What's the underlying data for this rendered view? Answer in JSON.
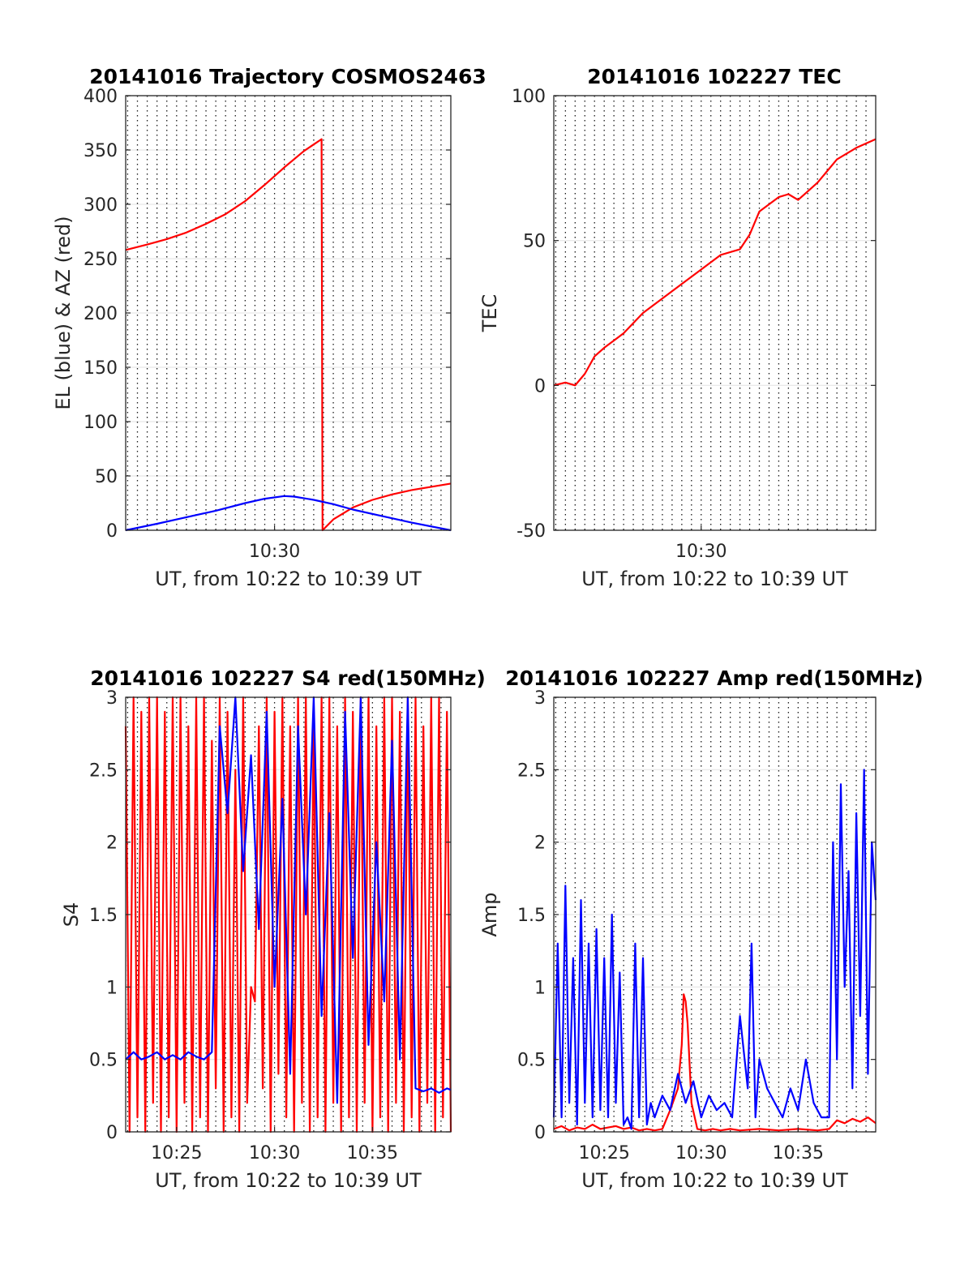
{
  "chart_data": [
    {
      "type": "line",
      "title": "20141016 Trajectory COSMOS2463",
      "xlabel": "UT, from 10:22 to 10:39 UT",
      "ylabel": "EL (blue) & AZ (red)",
      "x_unit": "minutes after 10:00 UT",
      "xlim": [
        22.4,
        39.0
      ],
      "ylim": [
        0,
        400
      ],
      "yticks": [
        0,
        50,
        100,
        150,
        200,
        250,
        300,
        350,
        400
      ],
      "xticks": [
        30
      ],
      "xticklabels": [
        "10:30"
      ],
      "grid": "x dotted every 0.5 min, y solid",
      "series": [
        {
          "color": "#ff0000",
          "x": [
            22.4,
            23.5,
            24.5,
            25.5,
            26.5,
            27.5,
            28.5,
            29.5,
            30.5,
            31.5,
            32.4,
            32.45,
            33.0,
            34.0,
            35.0,
            36.0,
            37.0,
            38.0,
            39.0
          ],
          "values": [
            258,
            263,
            268,
            274,
            282,
            291,
            303,
            318,
            334,
            349,
            360,
            0,
            10,
            21,
            28,
            33,
            37,
            40,
            43
          ]
        },
        {
          "color": "#0000ff",
          "x": [
            22.4,
            24.0,
            25.5,
            27.0,
            28.5,
            29.5,
            30.5,
            31.0,
            32.0,
            33.0,
            34.0,
            35.5,
            37.0,
            39.0
          ],
          "values": [
            0,
            6,
            12,
            18,
            25,
            29,
            31.5,
            31,
            28,
            24,
            19,
            13,
            7,
            0
          ]
        }
      ]
    },
    {
      "type": "line",
      "title": "20141016 102227 TEC",
      "xlabel": "UT, from 10:22 to 10:39 UT",
      "ylabel": "TEC",
      "x_unit": "minutes after 10:00 UT",
      "xlim": [
        22.4,
        39.0
      ],
      "ylim": [
        -50,
        100
      ],
      "yticks": [
        -50,
        0,
        50,
        100
      ],
      "xticks": [
        30
      ],
      "xticklabels": [
        "10:30"
      ],
      "grid": "x dotted every 0.5 min, y solid",
      "series": [
        {
          "color": "#ff0000",
          "x": [
            22.4,
            23.0,
            23.5,
            24.0,
            24.5,
            25.0,
            26.0,
            27.0,
            28.0,
            29.0,
            30.0,
            31.0,
            32.0,
            32.5,
            33.0,
            34.0,
            34.5,
            35.0,
            35.5,
            36.0,
            37.0,
            38.0,
            39.0
          ],
          "values": [
            0,
            1,
            0,
            4,
            10,
            13,
            18,
            25,
            30,
            35,
            40,
            45,
            47,
            52,
            60,
            65,
            66,
            64,
            67,
            70,
            78,
            82,
            85
          ]
        }
      ]
    },
    {
      "type": "line",
      "title": "20141016 102227 S4 red(150MHz)",
      "xlabel": "UT, from 10:22 to 10:39 UT",
      "ylabel": "S4",
      "x_unit": "minutes after 10:00 UT",
      "xlim": [
        22.4,
        39.0
      ],
      "ylim": [
        0,
        3
      ],
      "yticks": [
        0,
        0.5,
        1,
        1.5,
        2,
        2.5,
        3
      ],
      "xticks": [
        25,
        30,
        35
      ],
      "xticklabels": [
        "10:25",
        "10:30",
        "10:35"
      ],
      "grid": "x dotted every 0.5 min, y solid",
      "series": [
        {
          "color": "#ff0000",
          "x": [
            22.4,
            22.6,
            22.8,
            23.0,
            23.2,
            23.4,
            23.6,
            23.8,
            24.0,
            24.2,
            24.4,
            24.6,
            24.8,
            25.0,
            25.2,
            25.4,
            25.6,
            25.8,
            26.0,
            26.2,
            26.4,
            26.6,
            26.8,
            27.0,
            27.2,
            27.4,
            27.6,
            27.8,
            28.0,
            28.2,
            28.4,
            28.6,
            28.8,
            29.0,
            29.2,
            29.4,
            29.6,
            29.8,
            30.0,
            30.2,
            30.4,
            30.6,
            30.8,
            31.0,
            31.2,
            31.4,
            31.6,
            31.8,
            32.0,
            32.2,
            32.4,
            32.6,
            32.8,
            33.0,
            33.2,
            33.4,
            33.6,
            33.8,
            34.0,
            34.2,
            34.4,
            34.6,
            34.8,
            35.0,
            35.2,
            35.4,
            35.6,
            35.8,
            36.0,
            36.2,
            36.4,
            36.6,
            36.8,
            37.0,
            37.2,
            37.4,
            37.6,
            37.8,
            38.0,
            38.2,
            38.4,
            38.6,
            38.8,
            39.0
          ],
          "values": [
            2.8,
            0,
            3,
            0.1,
            2.9,
            0,
            3,
            0.2,
            3,
            0,
            2.9,
            0.1,
            3,
            0,
            3,
            0.2,
            2.8,
            0,
            3,
            0.1,
            3,
            0,
            2.7,
            0.3,
            3,
            0,
            2.9,
            0.1,
            2.5,
            0,
            3,
            0.2,
            1.0,
            0.9,
            2.8,
            0.3,
            3,
            0,
            2.9,
            0.4,
            3,
            0.1,
            2.8,
            0,
            3,
            0.2,
            3,
            0,
            2.9,
            0.1,
            3,
            0,
            3,
            0.2,
            2.8,
            0,
            3,
            0.1,
            2.9,
            0,
            3,
            0.2,
            3,
            0,
            2.8,
            0.1,
            3,
            0,
            3,
            0.2,
            2.9,
            0,
            3,
            0.1,
            3,
            0,
            2.8,
            0.2,
            3,
            0,
            3,
            0.1,
            2.9,
            0
          ]
        },
        {
          "color": "#0000ff",
          "x": [
            22.4,
            22.8,
            23.2,
            23.6,
            24.0,
            24.4,
            24.8,
            25.2,
            25.6,
            26.0,
            26.4,
            26.8,
            27.2,
            27.6,
            28.0,
            28.4,
            28.8,
            29.2,
            29.6,
            30.0,
            30.4,
            30.8,
            31.2,
            31.6,
            32.0,
            32.4,
            32.8,
            33.2,
            33.6,
            34.0,
            34.4,
            34.8,
            35.2,
            35.6,
            36.0,
            36.4,
            36.8,
            37.2,
            37.6,
            38.0,
            38.4,
            38.8,
            39.0
          ],
          "values": [
            0.5,
            0.55,
            0.5,
            0.52,
            0.55,
            0.5,
            0.53,
            0.5,
            0.55,
            0.52,
            0.5,
            0.55,
            2.8,
            2.2,
            3.0,
            1.8,
            2.6,
            1.4,
            2.9,
            1.0,
            2.3,
            0.4,
            2.8,
            1.5,
            3.0,
            0.8,
            2.2,
            0.2,
            2.9,
            1.2,
            3.0,
            0.6,
            2.0,
            0.9,
            2.7,
            0.5,
            3.0,
            0.3,
            0.28,
            0.3,
            0.27,
            0.3,
            0.29
          ]
        }
      ]
    },
    {
      "type": "line",
      "title": "20141016 102227 Amp red(150MHz)",
      "xlabel": "UT, from 10:22 to 10:39 UT",
      "ylabel": "Amp",
      "x_unit": "minutes after 10:00 UT",
      "xlim": [
        22.4,
        39.0
      ],
      "ylim": [
        0,
        3
      ],
      "yticks": [
        0,
        0.5,
        1,
        1.5,
        2,
        2.5,
        3
      ],
      "xticks": [
        25,
        30,
        35
      ],
      "xticklabels": [
        "10:25",
        "10:30",
        "10:35"
      ],
      "grid": "x dotted every 0.5 min, y solid",
      "series": [
        {
          "color": "#ff0000",
          "x": [
            22.4,
            22.8,
            23.2,
            23.6,
            24.0,
            24.4,
            24.8,
            25.2,
            25.6,
            26.0,
            26.4,
            26.8,
            27.2,
            27.6,
            28.0,
            28.4,
            28.8,
            29.0,
            29.1,
            29.2,
            29.3,
            29.5,
            29.8,
            30.2,
            30.6,
            31.0,
            31.5,
            32.0,
            33.0,
            34.0,
            35.0,
            36.0,
            36.6,
            36.8,
            37.0,
            37.4,
            37.8,
            38.2,
            38.6,
            39.0
          ],
          "values": [
            0.02,
            0.04,
            0.01,
            0.03,
            0.02,
            0.05,
            0.02,
            0.03,
            0.04,
            0.02,
            0.03,
            0.01,
            0.02,
            0.01,
            0.02,
            0.15,
            0.3,
            0.6,
            0.95,
            0.9,
            0.75,
            0.2,
            0.02,
            0.01,
            0.02,
            0.01,
            0.02,
            0.01,
            0.02,
            0.01,
            0.02,
            0.01,
            0.02,
            0.05,
            0.08,
            0.06,
            0.09,
            0.07,
            0.1,
            0.06
          ]
        },
        {
          "color": "#0000ff",
          "x": [
            22.4,
            22.6,
            22.8,
            23.0,
            23.2,
            23.4,
            23.6,
            23.8,
            24.0,
            24.2,
            24.4,
            24.6,
            24.8,
            25.0,
            25.2,
            25.4,
            25.6,
            25.8,
            26.0,
            26.2,
            26.4,
            26.6,
            26.8,
            27.0,
            27.2,
            27.4,
            27.6,
            28.0,
            28.4,
            28.8,
            29.2,
            29.6,
            30.0,
            30.4,
            30.8,
            31.2,
            31.6,
            32.0,
            32.4,
            32.6,
            32.8,
            33.0,
            33.4,
            33.8,
            34.2,
            34.6,
            35.0,
            35.4,
            35.8,
            36.2,
            36.6,
            36.8,
            37.0,
            37.2,
            37.4,
            37.6,
            37.8,
            38.0,
            38.2,
            38.4,
            38.6,
            38.8,
            39.0
          ],
          "values": [
            0.1,
            1.3,
            0.1,
            1.7,
            0.2,
            1.2,
            0.05,
            1.6,
            0.2,
            1.3,
            0.1,
            1.4,
            0.15,
            1.2,
            0.1,
            1.5,
            0.2,
            1.1,
            0.05,
            0.1,
            0.02,
            1.3,
            0.1,
            1.2,
            0.05,
            0.2,
            0.1,
            0.25,
            0.15,
            0.4,
            0.2,
            0.35,
            0.1,
            0.25,
            0.15,
            0.2,
            0.1,
            0.8,
            0.3,
            1.3,
            0.1,
            0.5,
            0.3,
            0.2,
            0.1,
            0.3,
            0.15,
            0.5,
            0.2,
            0.1,
            0.1,
            2.0,
            0.5,
            2.4,
            1.0,
            1.8,
            0.3,
            2.2,
            0.8,
            2.5,
            0.4,
            2.0,
            1.6
          ]
        }
      ]
    }
  ]
}
